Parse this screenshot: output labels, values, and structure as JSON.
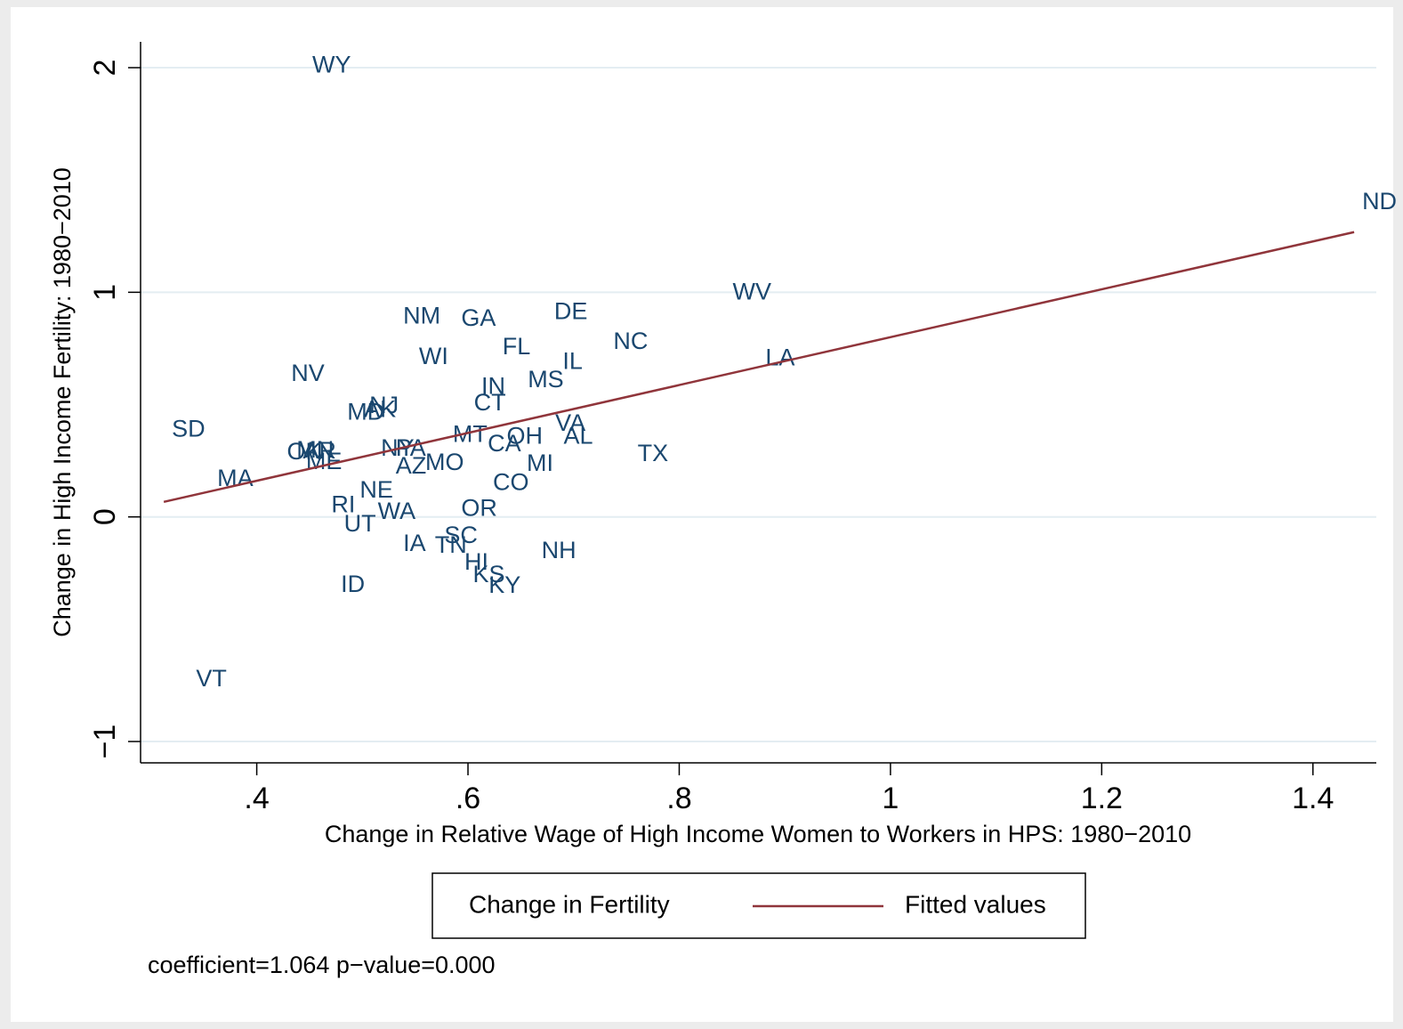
{
  "chart_data": {
    "type": "scatter",
    "xlabel": "Change in Relative Wage of High Income Women to Workers in HPS: 1980−2010",
    "ylabel": "Change in High Income Fertility: 1980−2010",
    "note": "coefficient=1.064 p−value=0.000",
    "xlim": [
      0.29,
      1.46
    ],
    "ylim": [
      -1.095,
      2.115
    ],
    "xticks": [
      {
        "value": 0.4,
        "label": ".4"
      },
      {
        "value": 0.6,
        "label": ".6"
      },
      {
        "value": 0.8,
        "label": ".8"
      },
      1,
      1.2,
      1.4
    ],
    "yticks": [
      {
        "value": -1,
        "label": "−1"
      },
      0,
      1,
      2
    ],
    "grid": true,
    "legend": "bottom",
    "series": [
      {
        "name": "Change in Fertility",
        "type": "scatter",
        "color": "#1a476f",
        "labels": [
          "WY",
          "ND",
          "SD",
          "MA",
          "VT",
          "NV",
          "NM",
          "GA",
          "WI",
          "DE",
          "FL",
          "IL",
          "MS",
          "NC",
          "WV",
          "LA",
          "IN",
          "CT",
          "MD",
          "AK",
          "NJ",
          "VA",
          "AL",
          "OH",
          "MT",
          "CA",
          "TX",
          "MI",
          "NY",
          "PA",
          "AZ",
          "MO",
          "OK",
          "MN",
          "AR",
          "ME",
          "NE",
          "RI",
          "UT",
          "WA",
          "OR",
          "CO",
          "SC",
          "TN",
          "IA",
          "NH",
          "HI",
          "KS",
          "KY",
          "ID"
        ],
        "x": [
          0.445,
          1.439,
          0.312,
          0.355,
          0.335,
          0.425,
          0.531,
          0.586,
          0.546,
          0.674,
          0.625,
          0.682,
          0.649,
          0.73,
          0.843,
          0.874,
          0.605,
          0.598,
          0.478,
          0.494,
          0.499,
          0.675,
          0.683,
          0.629,
          0.578,
          0.611,
          0.753,
          0.648,
          0.51,
          0.524,
          0.524,
          0.552,
          0.421,
          0.43,
          0.436,
          0.439,
          0.49,
          0.463,
          0.475,
          0.507,
          0.586,
          0.616,
          0.57,
          0.561,
          0.531,
          0.662,
          0.589,
          0.597,
          0.612,
          0.472
        ],
        "values": [
          2.006,
          1.399,
          0.385,
          0.166,
          -0.725,
          0.634,
          0.888,
          0.88,
          0.709,
          0.908,
          0.753,
          0.686,
          0.606,
          0.777,
          0.995,
          0.702,
          0.575,
          0.503,
          0.46,
          0.472,
          0.491,
          0.412,
          0.353,
          0.353,
          0.361,
          0.321,
          0.277,
          0.234,
          0.301,
          0.301,
          0.222,
          0.238,
          0.285,
          0.293,
          0.289,
          0.242,
          0.115,
          0.048,
          -0.036,
          0.02,
          0.032,
          0.147,
          -0.087,
          -0.131,
          -0.123,
          -0.155,
          -0.206,
          -0.262,
          -0.309,
          -0.305
        ]
      },
      {
        "name": "Fitted values",
        "type": "line",
        "color": "#90353b",
        "x": [
          0.312,
          1.439
        ],
        "values": [
          0.067,
          1.268
        ]
      }
    ]
  }
}
